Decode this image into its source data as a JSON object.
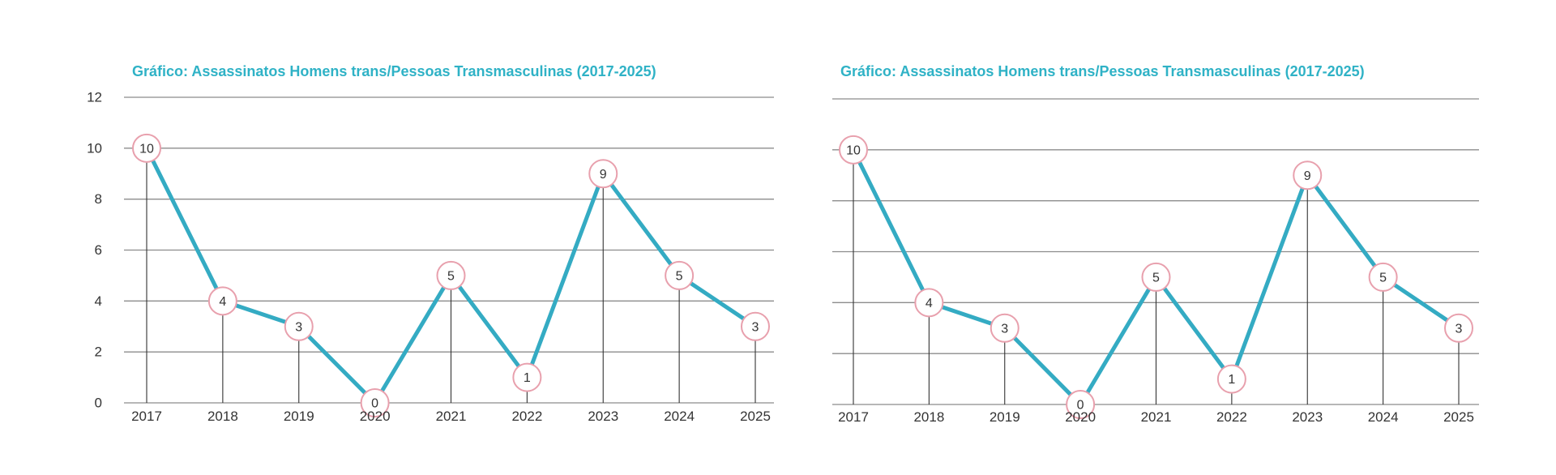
{
  "chart_data": [
    {
      "type": "line",
      "title": "Gráfico: Assassinatos Homens trans/Pessoas Transmasculinas (2017-2025)",
      "categories": [
        "2017",
        "2018",
        "2019",
        "2020",
        "2021",
        "2022",
        "2023",
        "2024",
        "2025"
      ],
      "series": [
        {
          "values": [
            10,
            4,
            3,
            0,
            5,
            1,
            9,
            5,
            3
          ]
        }
      ],
      "yticks": [
        "0",
        "2",
        "4",
        "6",
        "8",
        "10",
        "12"
      ],
      "ylim": [
        0,
        12
      ],
      "grid": true,
      "colors": {
        "line": "#34abc3",
        "marker_border": "#e8a0ad",
        "title": "#2fb2c6",
        "grid": "#8c8c8c"
      }
    },
    {
      "type": "line",
      "title": "Gráfico: Assassinatos Homens trans/Pessoas Transmasculinas (2017-2025)",
      "categories": [
        "2017",
        "2018",
        "2019",
        "2020",
        "2021",
        "2022",
        "2023",
        "2024",
        "2025"
      ],
      "series": [
        {
          "values": [
            10,
            4,
            3,
            0,
            5,
            1,
            9,
            5,
            3
          ]
        }
      ],
      "yticks": [],
      "ylim": [
        0,
        12
      ],
      "grid": true,
      "colors": {
        "line": "#34abc3",
        "marker_border": "#e8a0ad",
        "title": "#2fb2c6",
        "grid": "#8c8c8c"
      }
    }
  ]
}
